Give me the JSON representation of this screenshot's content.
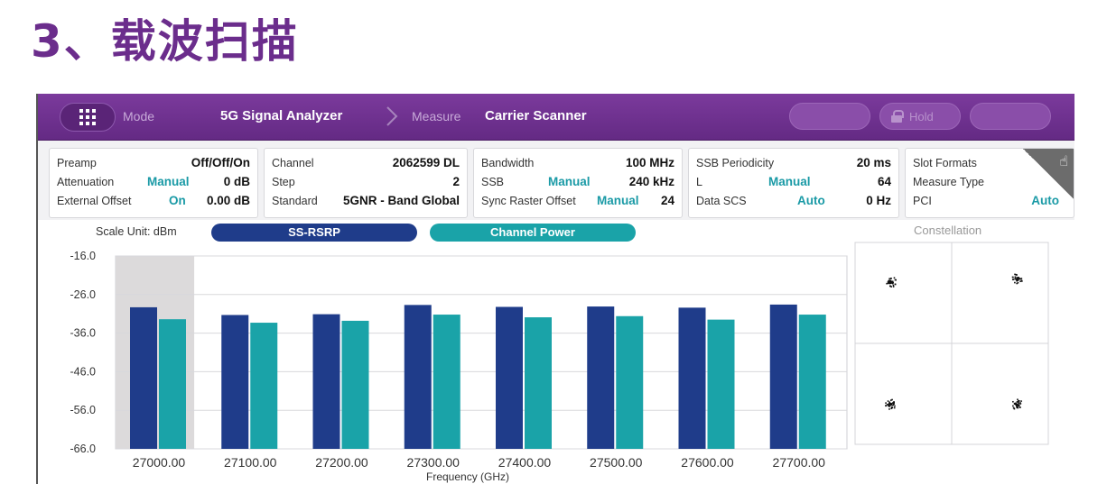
{
  "slide_title": "3、载波扫描",
  "topbar": {
    "mode_label": "Mode",
    "mode_value": "5G Signal Analyzer",
    "measure_label": "Measure",
    "measure_value": "Carrier Scanner",
    "hold_label": "Hold"
  },
  "panels": {
    "p1": {
      "preamp_label": "Preamp",
      "preamp_value": "Off/Off/On",
      "atten_label": "Attenuation",
      "atten_mode": "Manual",
      "atten_value": "0 dB",
      "extoff_label": "External Offset",
      "extoff_mode": "On",
      "extoff_value": "0.00 dB"
    },
    "p2": {
      "channel_label": "Channel",
      "channel_value": "2062599 DL",
      "step_label": "Step",
      "step_value": "2",
      "standard_label": "Standard",
      "standard_value": "5GNR - Band Global"
    },
    "p3": {
      "bw_label": "Bandwidth",
      "bw_value": "100 MHz",
      "ssb_label": "SSB",
      "ssb_mode": "Manual",
      "ssb_value": "240 kHz",
      "sro_label": "Sync Raster Offset",
      "sro_mode": "Manual",
      "sro_value": "24"
    },
    "p4": {
      "ssbp_label": "SSB Periodicity",
      "ssbp_value": "20 ms",
      "l_label": "L",
      "l_mode": "Manual",
      "l_value": "64",
      "dscs_label": "Data SCS",
      "dscs_mode": "Auto",
      "dscs_value": "0 Hz"
    },
    "p5": {
      "slot_label": "Slot Formats",
      "mt_label": "Measure Type",
      "pci_label": "PCI",
      "pci_mode": "Auto"
    }
  },
  "chart": {
    "unit_label": "Scale Unit: dBm",
    "legend": [
      "SS-RSRP",
      "Channel Power"
    ],
    "constellation_title": "Constellation"
  },
  "chart_data": {
    "type": "bar",
    "xlabel": "Frequency (GHz)",
    "ylabel": "",
    "categories": [
      "27000.00",
      "27100.00",
      "27200.00",
      "27300.00",
      "27400.00",
      "27500.00",
      "27600.00",
      "27700.00"
    ],
    "yticks": [
      "-16.0",
      "-26.0",
      "-36.0",
      "-46.0",
      "-56.0",
      "-66.0"
    ],
    "ylim": [
      -66,
      -16
    ],
    "grid": true,
    "legend_position": "top",
    "selected_category": "27000.00",
    "series": [
      {
        "name": "SS-RSRP",
        "color": "#1f3c8a",
        "values": [
          -29.3,
          -31.3,
          -31.1,
          -28.7,
          -29.2,
          -29.1,
          -29.4,
          -28.6
        ]
      },
      {
        "name": "Channel Power",
        "color": "#1aa3a8",
        "values": [
          -32.4,
          -33.3,
          -32.8,
          -31.2,
          -31.9,
          -31.6,
          -32.5,
          -31.2
        ]
      }
    ]
  },
  "colors": {
    "title": "#6b2d8c",
    "topbar": "#6e3290",
    "accent_teal": "#1a9aa6",
    "bar_rsrp": "#1f3c8a",
    "bar_power": "#1aa3a8"
  },
  "icons": {
    "menu": "grid-icon",
    "breadcrumb": "chevron-right-icon",
    "hold": "lock-icon",
    "corner": "hand-pointer-icon"
  }
}
